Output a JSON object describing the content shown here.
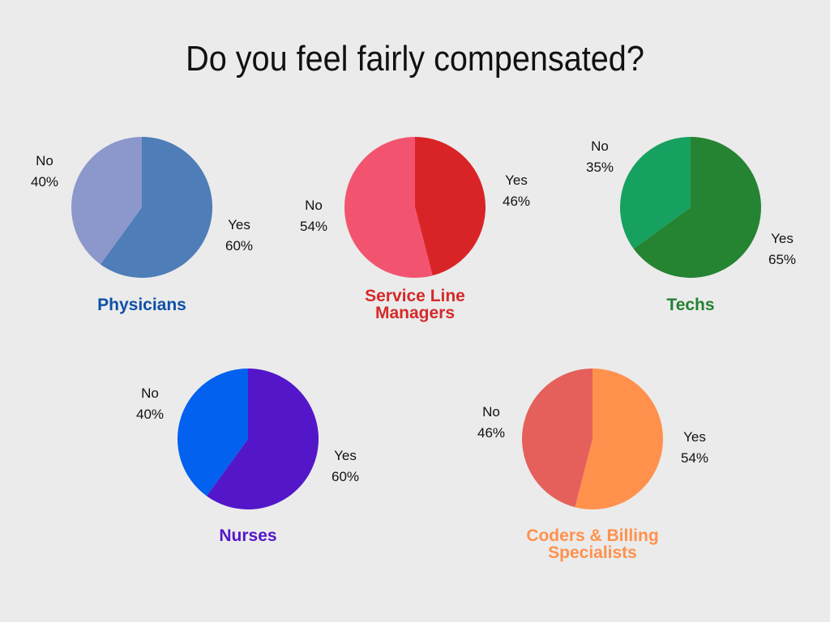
{
  "title": "Do you feel fairly compensated?",
  "chart_data": [
    {
      "type": "pie",
      "group": "Physicians",
      "group_lines": [
        "Physicians"
      ],
      "group_color": "#0f4fa8",
      "slices": [
        {
          "label": "Yes",
          "value": 60,
          "value_label": "60%",
          "color": "#4e7db8"
        },
        {
          "label": "No",
          "value": 40,
          "value_label": "40%",
          "color": "#8c97cb"
        }
      ]
    },
    {
      "type": "pie",
      "group": "Service Line Managers",
      "group_lines": [
        "Service Line",
        "Managers"
      ],
      "group_color": "#d42a2a",
      "slices": [
        {
          "label": "Yes",
          "value": 46,
          "value_label": "46%",
          "color": "#d92427"
        },
        {
          "label": "No",
          "value": 54,
          "value_label": "54%",
          "color": "#f25470"
        }
      ]
    },
    {
      "type": "pie",
      "group": "Techs",
      "group_lines": [
        "Techs"
      ],
      "group_color": "#248132",
      "slices": [
        {
          "label": "Yes",
          "value": 65,
          "value_label": "65%",
          "color": "#258432"
        },
        {
          "label": "No",
          "value": 35,
          "value_label": "35%",
          "color": "#17a160"
        }
      ]
    },
    {
      "type": "pie",
      "group": "Nurses",
      "group_lines": [
        "Nurses"
      ],
      "group_color": "#5418c8",
      "slices": [
        {
          "label": "Yes",
          "value": 60,
          "value_label": "60%",
          "color": "#5317c9"
        },
        {
          "label": "No",
          "value": 40,
          "value_label": "40%",
          "color": "#0261ef"
        }
      ]
    },
    {
      "type": "pie",
      "group": "Coders & Billing Specialists",
      "group_lines": [
        "Coders & Billing",
        "Specialists"
      ],
      "group_color": "#ff914d",
      "slices": [
        {
          "label": "Yes",
          "value": 54,
          "value_label": "54%",
          "color": "#ff914d"
        },
        {
          "label": "No",
          "value": 46,
          "value_label": "46%",
          "color": "#e5605a"
        }
      ]
    }
  ]
}
